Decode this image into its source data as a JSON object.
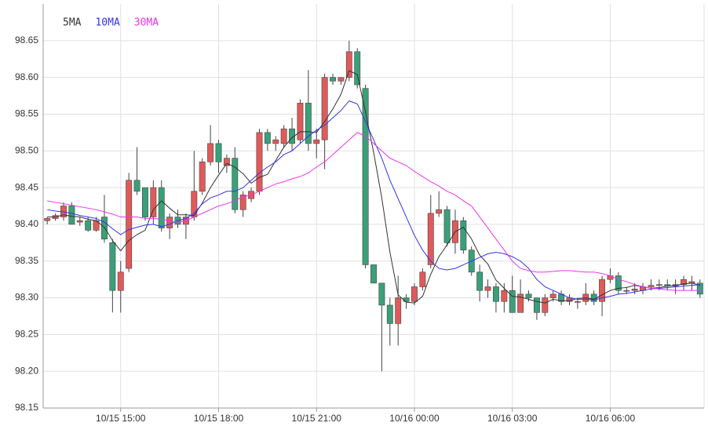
{
  "chart_data": {
    "type": "candlestick",
    "categories": [
      null,
      null,
      null,
      null,
      null,
      null,
      null,
      null,
      null,
      "10/15 15:00",
      null,
      null,
      null,
      null,
      null,
      null,
      null,
      null,
      null,
      null,
      null,
      "10/15 18:00",
      null,
      null,
      null,
      null,
      null,
      null,
      null,
      null,
      null,
      null,
      null,
      "10/15 21:00",
      null,
      null,
      null,
      null,
      null,
      null,
      null,
      null,
      null,
      null,
      null,
      "10/16 00:00",
      null,
      null,
      null,
      null,
      null,
      null,
      null,
      null,
      null,
      null,
      null,
      "10/16 03:00",
      null,
      null,
      null,
      null,
      null,
      null,
      null,
      null,
      null,
      null,
      null,
      "10/16 06:00",
      null,
      null,
      null,
      null,
      null,
      null,
      null,
      null,
      null,
      null,
      null
    ],
    "open": [
      98.405,
      98.408,
      98.41,
      98.425,
      98.403,
      98.405,
      98.392,
      98.41,
      98.375,
      98.31,
      98.34,
      98.46,
      98.45,
      98.41,
      98.45,
      98.395,
      98.41,
      98.4,
      98.41,
      98.445,
      98.485,
      98.51,
      98.48,
      98.49,
      98.42,
      98.435,
      98.445,
      98.525,
      98.51,
      98.51,
      98.53,
      98.515,
      98.565,
      98.51,
      98.515,
      98.6,
      98.595,
      98.6,
      98.635,
      98.585,
      98.345,
      98.32,
      98.29,
      98.265,
      98.3,
      98.295,
      98.315,
      98.345,
      98.415,
      98.42,
      98.375,
      98.405,
      98.365,
      98.335,
      98.31,
      98.315,
      98.295,
      98.31,
      98.28,
      98.305,
      98.3,
      98.28,
      98.3,
      98.305,
      98.295,
      98.295,
      98.295,
      98.305,
      98.295,
      98.325,
      98.33,
      98.31,
      98.31,
      98.31,
      98.315,
      98.317,
      98.318,
      98.316,
      98.318,
      98.32,
      98.32
    ],
    "high": [
      98.41,
      98.415,
      98.43,
      98.43,
      98.41,
      98.41,
      98.41,
      98.44,
      98.38,
      98.35,
      98.47,
      98.505,
      98.45,
      98.46,
      98.46,
      98.415,
      98.42,
      98.415,
      98.5,
      98.49,
      98.535,
      98.515,
      98.495,
      98.505,
      98.445,
      98.45,
      98.53,
      98.53,
      98.52,
      98.535,
      98.545,
      98.57,
      98.61,
      98.53,
      98.605,
      98.605,
      98.6,
      98.65,
      98.64,
      98.59,
      98.345,
      98.32,
      98.3,
      98.33,
      98.305,
      98.32,
      98.34,
      98.44,
      98.445,
      98.425,
      98.42,
      98.41,
      98.37,
      98.345,
      98.325,
      98.32,
      98.32,
      98.33,
      98.325,
      98.31,
      98.3,
      98.305,
      98.31,
      98.31,
      98.305,
      98.3,
      98.32,
      98.31,
      98.33,
      98.34,
      98.335,
      98.315,
      98.32,
      98.32,
      98.325,
      98.325,
      98.325,
      98.325,
      98.33,
      98.33,
      98.325
    ],
    "low": [
      98.4,
      98.405,
      98.405,
      98.4,
      98.398,
      98.39,
      98.39,
      98.375,
      98.28,
      98.28,
      98.335,
      98.44,
      98.405,
      98.4,
      98.39,
      98.38,
      98.395,
      98.38,
      98.405,
      98.44,
      98.48,
      98.47,
      98.47,
      98.415,
      98.41,
      98.43,
      98.44,
      98.5,
      98.5,
      98.505,
      98.5,
      98.51,
      98.5,
      98.49,
      98.475,
      98.59,
      98.59,
      98.595,
      98.585,
      98.34,
      98.32,
      98.2,
      98.235,
      98.235,
      98.285,
      98.29,
      98.31,
      98.34,
      98.41,
      98.37,
      98.36,
      98.36,
      98.33,
      98.295,
      98.3,
      98.28,
      98.28,
      98.28,
      98.28,
      98.295,
      98.27,
      98.275,
      98.295,
      98.29,
      98.29,
      98.285,
      98.29,
      98.29,
      98.275,
      98.32,
      98.305,
      98.305,
      98.305,
      98.305,
      98.31,
      98.31,
      98.31,
      98.305,
      98.31,
      98.31,
      98.3
    ],
    "close": [
      98.408,
      98.412,
      98.425,
      98.4,
      98.405,
      98.392,
      98.405,
      98.38,
      98.31,
      98.335,
      98.46,
      98.445,
      98.41,
      98.45,
      98.395,
      98.41,
      98.4,
      98.41,
      98.445,
      98.485,
      98.51,
      98.485,
      98.49,
      98.42,
      98.44,
      98.445,
      98.525,
      98.51,
      98.515,
      98.53,
      98.51,
      98.565,
      98.51,
      98.515,
      98.6,
      98.595,
      98.6,
      98.635,
      98.59,
      98.345,
      98.32,
      98.29,
      98.265,
      98.3,
      98.295,
      98.315,
      98.335,
      98.415,
      98.42,
      98.375,
      98.405,
      98.365,
      98.335,
      98.31,
      98.315,
      98.295,
      98.31,
      98.28,
      98.305,
      98.3,
      98.28,
      98.3,
      98.305,
      98.295,
      98.3,
      98.295,
      98.305,
      98.295,
      98.325,
      98.33,
      98.31,
      98.31,
      98.312,
      98.315,
      98.317,
      98.318,
      98.316,
      98.318,
      98.325,
      98.322,
      98.305
    ],
    "up_color": "#e05a5a",
    "down_color": "#3aa079",
    "wick_color": "#444444",
    "series": [
      {
        "name": "5MA",
        "color": "#333333",
        "values": [
          98.41,
          98.41,
          98.413,
          98.411,
          98.41,
          98.407,
          98.405,
          98.396,
          98.378,
          98.364,
          98.378,
          98.386,
          98.392,
          98.42,
          98.432,
          98.422,
          98.413,
          98.413,
          98.412,
          98.429,
          98.45,
          98.467,
          98.483,
          98.478,
          98.469,
          98.456,
          98.464,
          98.468,
          98.487,
          98.505,
          98.518,
          98.526,
          98.526,
          98.525,
          98.54,
          98.557,
          98.577,
          98.609,
          98.604,
          98.553,
          98.498,
          98.436,
          98.362,
          98.304,
          98.294,
          98.293,
          98.302,
          98.332,
          98.356,
          98.372,
          98.39,
          98.396,
          98.38,
          98.358,
          98.346,
          98.324,
          98.313,
          98.302,
          98.301,
          98.298,
          98.295,
          98.293,
          98.298,
          98.296,
          98.296,
          98.299,
          98.3,
          98.298,
          98.304,
          98.31,
          98.313,
          98.314,
          98.317,
          98.315,
          98.313,
          98.314,
          98.316,
          98.317,
          98.319,
          98.32,
          98.317
        ]
      },
      {
        "name": "10MA",
        "color": "#3333ee",
        "values": [
          98.42,
          98.418,
          98.417,
          98.415,
          98.412,
          98.41,
          98.408,
          98.403,
          98.394,
          98.386,
          98.393,
          98.396,
          98.399,
          98.4,
          98.397,
          98.4,
          98.405,
          98.408,
          98.415,
          98.428,
          98.436,
          98.44,
          98.445,
          98.445,
          98.45,
          98.46,
          98.47,
          98.478,
          98.485,
          98.495,
          98.5,
          98.51,
          98.52,
          98.528,
          98.535,
          98.545,
          98.555,
          98.568,
          98.564,
          98.54,
          98.515,
          98.49,
          98.46,
          98.435,
          98.41,
          98.385,
          98.365,
          98.35,
          98.34,
          98.338,
          98.34,
          98.345,
          98.35,
          98.355,
          98.36,
          98.362,
          98.36,
          98.356,
          98.35,
          98.34,
          98.325,
          98.315,
          98.31,
          98.305,
          98.3,
          98.298,
          98.298,
          98.297,
          98.3,
          98.302,
          98.305,
          98.306,
          98.308,
          98.31,
          98.312,
          98.313,
          98.314,
          98.315,
          98.316,
          98.317,
          98.318
        ]
      },
      {
        "name": "30MA",
        "color": "#ee33ee",
        "values": [
          98.432,
          98.43,
          98.428,
          98.426,
          98.424,
          98.422,
          98.42,
          98.417,
          98.414,
          98.41,
          98.41,
          98.41,
          98.408,
          98.408,
          98.407,
          98.405,
          98.403,
          98.405,
          98.41,
          98.415,
          98.42,
          98.425,
          98.428,
          98.432,
          98.438,
          98.44,
          98.445,
          98.45,
          98.455,
          98.458,
          98.462,
          98.465,
          98.47,
          98.478,
          98.485,
          98.495,
          98.505,
          98.515,
          98.525,
          98.52,
          98.51,
          98.5,
          98.49,
          98.485,
          98.48,
          98.472,
          98.465,
          98.458,
          98.452,
          98.445,
          98.44,
          98.432,
          98.425,
          98.41,
          98.395,
          98.38,
          98.365,
          98.35,
          98.34,
          98.337,
          98.335,
          98.335,
          98.336,
          98.337,
          98.337,
          98.336,
          98.335,
          98.335,
          98.333,
          98.33,
          98.325,
          98.322,
          98.318,
          98.315,
          98.313,
          98.312,
          98.311,
          98.31,
          98.31,
          98.31,
          98.31
        ]
      }
    ],
    "ylim": [
      98.15,
      98.7
    ],
    "yticks": [
      98.15,
      {
        "value": 98.2,
        "label": "98.20"
      },
      98.25,
      {
        "value": 98.3,
        "label": "98.30"
      },
      98.35,
      {
        "value": 98.4,
        "label": "98.40"
      },
      98.45,
      {
        "value": 98.5,
        "label": "98.50"
      },
      98.55,
      {
        "value": 98.6,
        "label": "98.60"
      },
      98.65
    ],
    "grid": true,
    "legend": "top-left"
  }
}
